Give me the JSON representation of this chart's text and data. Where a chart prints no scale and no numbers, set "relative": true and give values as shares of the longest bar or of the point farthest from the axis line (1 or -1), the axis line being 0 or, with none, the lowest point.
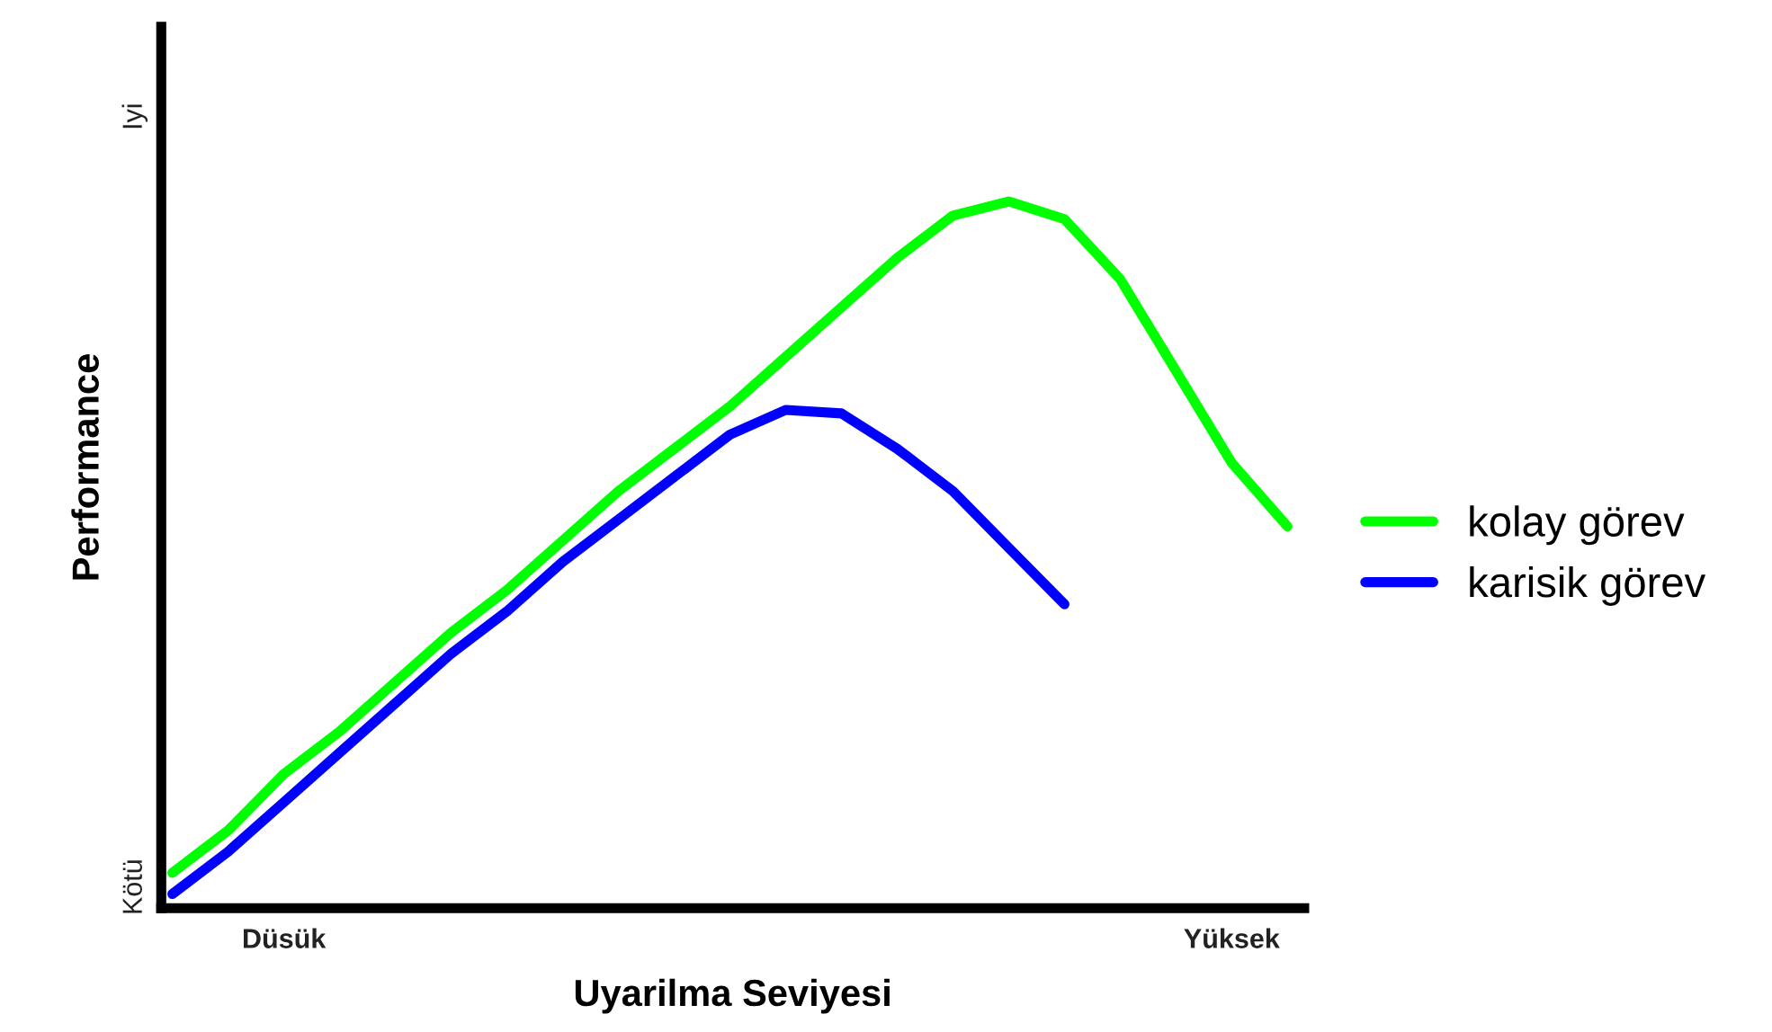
{
  "chart_data": {
    "type": "line",
    "relative": true,
    "xlabel": "Uyarilma Seviyesi",
    "ylabel": "Performance",
    "annotations": [
      "Kötü",
      "Iyi"
    ],
    "categories": [
      null,
      null,
      "Düsük",
      null,
      null,
      null,
      null,
      null,
      null,
      null,
      null,
      null,
      null,
      null,
      null,
      null,
      null,
      null,
      null,
      "Yüksek",
      null
    ],
    "grid": false,
    "legend": "right",
    "marker": "none",
    "line_style": "solid",
    "series": [
      {
        "name": "kolay görev",
        "color": "#00ff00",
        "values": [
          0.05,
          0.11,
          0.19,
          0.25,
          0.32,
          0.39,
          0.45,
          0.52,
          0.59,
          0.65,
          0.71,
          0.78,
          0.85,
          0.92,
          0.98,
          1.0,
          0.975,
          0.89,
          0.76,
          0.63,
          0.54
        ]
      },
      {
        "name": "karisik görev",
        "color": "#0000ff",
        "values": [
          0.02,
          0.08,
          0.15,
          0.22,
          0.29,
          0.36,
          0.42,
          0.49,
          0.55,
          0.61,
          0.67,
          0.705,
          0.7,
          0.65,
          0.59,
          0.51,
          0.43,
          null,
          null,
          null,
          null
        ]
      }
    ]
  }
}
